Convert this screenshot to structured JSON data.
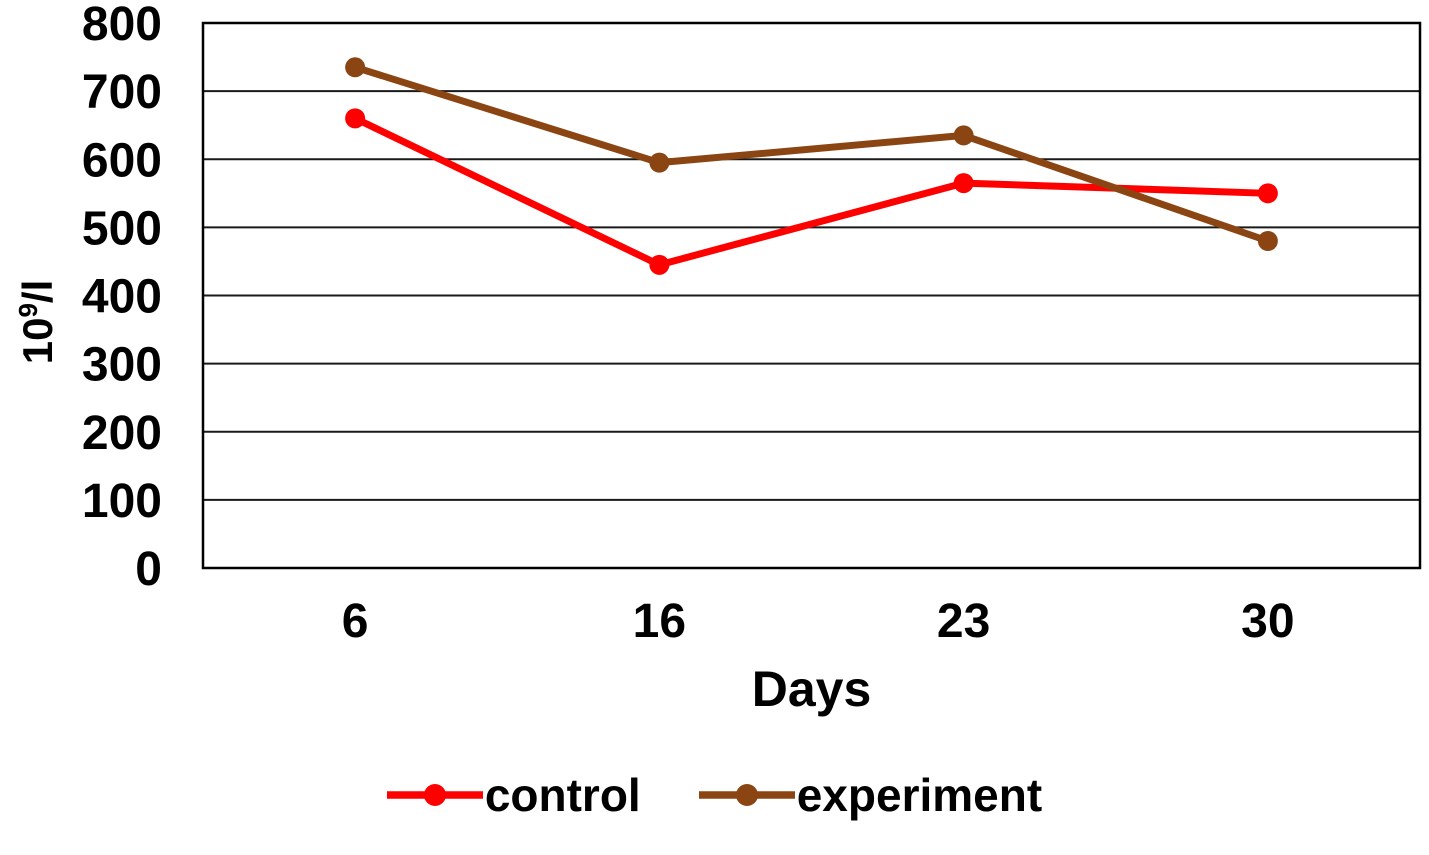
{
  "chart_data": {
    "type": "line",
    "categories": [
      "6",
      "16",
      "23",
      "30"
    ],
    "series": [
      {
        "name": "control",
        "color": "#FF0000",
        "values": [
          660,
          445,
          565,
          550
        ]
      },
      {
        "name": "experiment",
        "color": "#8B4513",
        "values": [
          735,
          595,
          635,
          480
        ]
      }
    ],
    "title": "",
    "xlabel": "Days",
    "ylabel": "10^9/l",
    "ylabel_parts": {
      "base": "10",
      "sup": "9",
      "rest": "/l"
    },
    "ylim": [
      0,
      800
    ],
    "ytick_step": 100,
    "grid": true,
    "legend_position": "bottom"
  },
  "styles": {
    "background": "#ffffff",
    "grid_color": "#1a1a1a",
    "border_color": "#000000",
    "text_color": "#000000"
  }
}
